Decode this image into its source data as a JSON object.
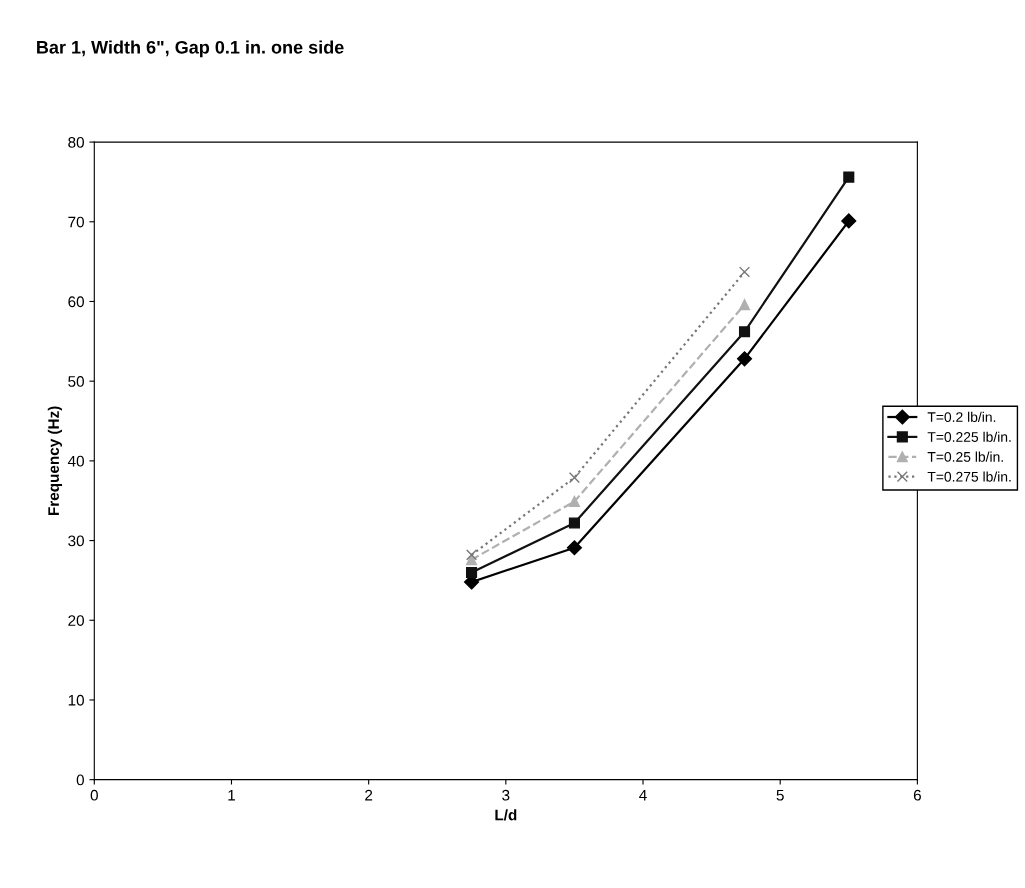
{
  "chart_data": {
    "type": "line",
    "title": "Bar 1, Width 6\", Gap 0.1 in. one side",
    "xlabel": "L/d",
    "ylabel": "Frequency (Hz)",
    "xlim": [
      0,
      6
    ],
    "xticks": [
      0,
      1,
      2,
      3,
      4,
      5,
      6
    ],
    "ylim": [
      0,
      80
    ],
    "yticks": [
      0,
      10,
      20,
      30,
      40,
      50,
      60,
      70,
      80
    ],
    "grid": false,
    "legend": "right",
    "series": [
      {
        "name": "T=0.2 lb/in.",
        "color": "#000000",
        "marker": "diamond",
        "line_style": "solid",
        "x": [
          2.75,
          3.5,
          4.74,
          5.5
        ],
        "values": [
          24.8,
          29.1,
          52.8,
          70.1
        ]
      },
      {
        "name": "T=0.225 lb/in.",
        "color": "#111111",
        "marker": "square",
        "line_style": "solid",
        "x": [
          2.75,
          3.5,
          4.74,
          5.5
        ],
        "values": [
          26.0,
          32.2,
          56.2,
          75.6
        ]
      },
      {
        "name": "T=0.25 lb/in.",
        "color": "#b0b0b0",
        "marker": "triangle",
        "line_style": "dashed",
        "x": [
          2.75,
          3.5,
          4.74
        ],
        "values": [
          27.6,
          34.9,
          59.6
        ]
      },
      {
        "name": "T=0.275 lb/in.",
        "color": "#777777",
        "marker": "cross",
        "line_style": "dotted",
        "x": [
          2.75,
          3.5,
          4.74
        ],
        "values": [
          28.2,
          37.9,
          63.7
        ]
      }
    ]
  }
}
